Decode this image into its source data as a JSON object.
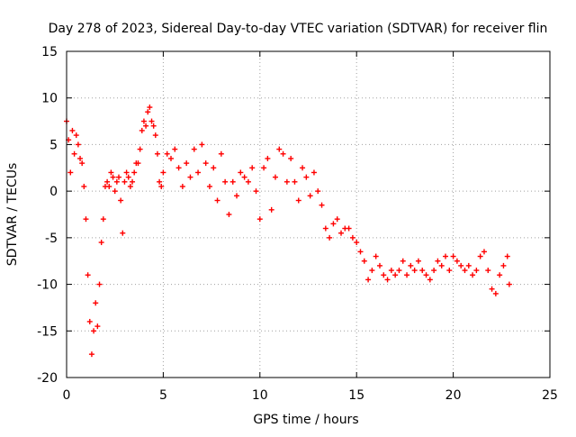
{
  "chart_data": {
    "type": "scatter",
    "title": "Day 278 of 2023, Sidereal Day-to-day VTEC variation (SDTVAR) for receiver flin",
    "xlabel": "GPS time / hours",
    "ylabel": "SDTVAR / TECUs",
    "xlim": [
      0,
      25
    ],
    "ylim": [
      -20,
      15
    ],
    "xticks": [
      0,
      5,
      10,
      15,
      20,
      25
    ],
    "yticks": [
      -20,
      -15,
      -10,
      -5,
      0,
      5,
      10,
      15
    ],
    "grid": true,
    "marker": "+",
    "color": "#ff0000",
    "series": [
      {
        "name": "SDTVAR",
        "x": [
          0.0,
          0.1,
          0.2,
          0.3,
          0.4,
          0.5,
          0.6,
          0.7,
          0.8,
          0.9,
          1.0,
          1.1,
          1.2,
          1.3,
          1.4,
          1.5,
          1.6,
          1.7,
          1.8,
          1.9,
          2.0,
          2.1,
          2.2,
          2.3,
          2.4,
          2.5,
          2.6,
          2.7,
          2.8,
          2.9,
          3.0,
          3.1,
          3.2,
          3.3,
          3.4,
          3.5,
          3.6,
          3.7,
          3.8,
          3.9,
          4.0,
          4.1,
          4.2,
          4.3,
          4.4,
          4.5,
          4.6,
          4.7,
          4.8,
          4.9,
          5.0,
          5.2,
          5.4,
          5.6,
          5.8,
          6.0,
          6.2,
          6.4,
          6.6,
          6.8,
          7.0,
          7.2,
          7.4,
          7.6,
          7.8,
          8.0,
          8.2,
          8.4,
          8.6,
          8.8,
          9.0,
          9.2,
          9.4,
          9.6,
          9.8,
          10.0,
          10.2,
          10.4,
          10.6,
          10.8,
          11.0,
          11.2,
          11.4,
          11.6,
          11.8,
          12.0,
          12.2,
          12.4,
          12.6,
          12.8,
          13.0,
          13.2,
          13.4,
          13.6,
          13.8,
          14.0,
          14.2,
          14.4,
          14.6,
          14.8,
          15.0,
          15.2,
          15.4,
          15.6,
          15.8,
          16.0,
          16.2,
          16.4,
          16.6,
          16.8,
          17.0,
          17.2,
          17.4,
          17.6,
          17.8,
          18.0,
          18.2,
          18.4,
          18.6,
          18.8,
          19.0,
          19.2,
          19.4,
          19.6,
          19.8,
          20.0,
          20.2,
          20.4,
          20.6,
          20.8,
          21.0,
          21.2,
          21.4,
          21.6,
          21.8,
          22.0,
          22.2,
          22.4,
          22.6,
          22.8,
          22.9
        ],
        "y": [
          7.5,
          5.5,
          2.0,
          6.5,
          4.0,
          6.0,
          5.0,
          3.5,
          3.0,
          0.5,
          -3.0,
          -9.0,
          -14.0,
          -17.5,
          -15.0,
          -12.0,
          -14.5,
          -10.0,
          -5.5,
          -3.0,
          0.5,
          1.0,
          0.5,
          2.0,
          1.5,
          0.0,
          1.0,
          1.5,
          -1.0,
          -4.5,
          1.0,
          2.0,
          1.5,
          0.5,
          1.0,
          2.0,
          3.0,
          3.0,
          4.5,
          6.5,
          7.5,
          7.0,
          8.5,
          9.0,
          7.5,
          7.0,
          6.0,
          4.0,
          1.0,
          0.5,
          2.0,
          4.0,
          3.5,
          4.5,
          2.5,
          0.5,
          3.0,
          1.5,
          4.5,
          2.0,
          5.0,
          3.0,
          0.5,
          2.5,
          -1.0,
          4.0,
          1.0,
          -2.5,
          1.0,
          -0.5,
          2.0,
          1.5,
          1.0,
          2.5,
          0.0,
          -3.0,
          2.5,
          3.5,
          -2.0,
          1.5,
          4.5,
          4.0,
          1.0,
          3.5,
          1.0,
          -1.0,
          2.5,
          1.5,
          -0.5,
          2.0,
          0.0,
          -1.5,
          -4.0,
          -5.0,
          -3.5,
          -3.0,
          -4.5,
          -4.0,
          -4.0,
          -5.0,
          -5.5,
          -6.5,
          -7.5,
          -9.5,
          -8.5,
          -7.0,
          -8.0,
          -9.0,
          -9.5,
          -8.5,
          -9.0,
          -8.5,
          -7.5,
          -9.0,
          -8.0,
          -8.5,
          -7.5,
          -8.5,
          -9.0,
          -9.5,
          -8.5,
          -7.5,
          -8.0,
          -7.0,
          -8.5,
          -7.0,
          -7.5,
          -8.0,
          -8.5,
          -8.0,
          -9.0,
          -8.5,
          -7.0,
          -6.5,
          -8.5,
          -10.5,
          -11.0,
          -9.0,
          -8.0,
          -7.0,
          -10.0
        ]
      }
    ]
  }
}
